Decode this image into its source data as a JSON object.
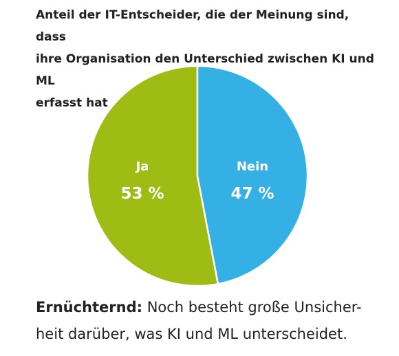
{
  "chart_data": {
    "type": "pie",
    "title_lines": [
      "Anteil der IT-Entscheider, die der Meinung sind, dass",
      "ihre Organisation den Unterschied zwischen KI und ML",
      "erfasst hat"
    ],
    "slices": [
      {
        "label": "Ja",
        "value": 53,
        "value_label": "53 %",
        "color": "#9ebc14"
      },
      {
        "label": "Nein",
        "value": 47,
        "value_label": "47 %",
        "color": "#35b0e5"
      }
    ],
    "start": "top",
    "direction": "counterclockwise"
  },
  "caption": {
    "lead": "Ernüchternd:",
    "text_line1": " Noch besteht große Unsicher-",
    "text_line2": "heit darüber, was KI und ML unterscheidet."
  }
}
